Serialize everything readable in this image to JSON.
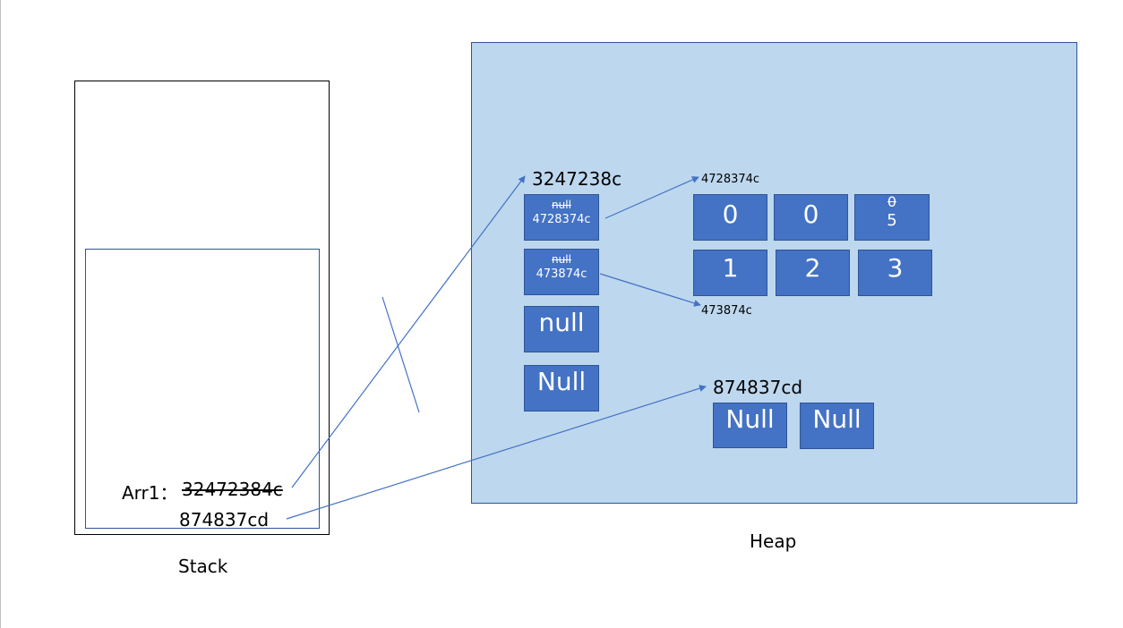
{
  "stack": {
    "label": "Stack",
    "arr1_label": "Arr1：",
    "arr1_old_address": "32472384c",
    "arr1_new_address": "874837cd"
  },
  "heap": {
    "label": "Heap",
    "outer_array": {
      "address": "3247238c",
      "cells": [
        {
          "old": "null",
          "value": "4728374c"
        },
        {
          "old": "null",
          "value": "473874c"
        },
        {
          "value": "null"
        },
        {
          "value": "Null"
        }
      ]
    },
    "array_a": {
      "address": "4728374c",
      "cells": [
        {
          "value": "0"
        },
        {
          "value": "0"
        },
        {
          "old": "0",
          "value": "5"
        }
      ]
    },
    "array_b": {
      "address": "473874c",
      "cells": [
        {
          "value": "1"
        },
        {
          "value": "2"
        },
        {
          "value": "3"
        }
      ]
    },
    "new_array": {
      "address": "874837cd",
      "cells": [
        {
          "value": "Null"
        },
        {
          "value": "Null"
        }
      ]
    }
  },
  "colors": {
    "cell_fill": "#4472c4",
    "cell_border": "#2f5597",
    "heap_fill": "#bdd7ee",
    "arrow": "#4472c4"
  }
}
